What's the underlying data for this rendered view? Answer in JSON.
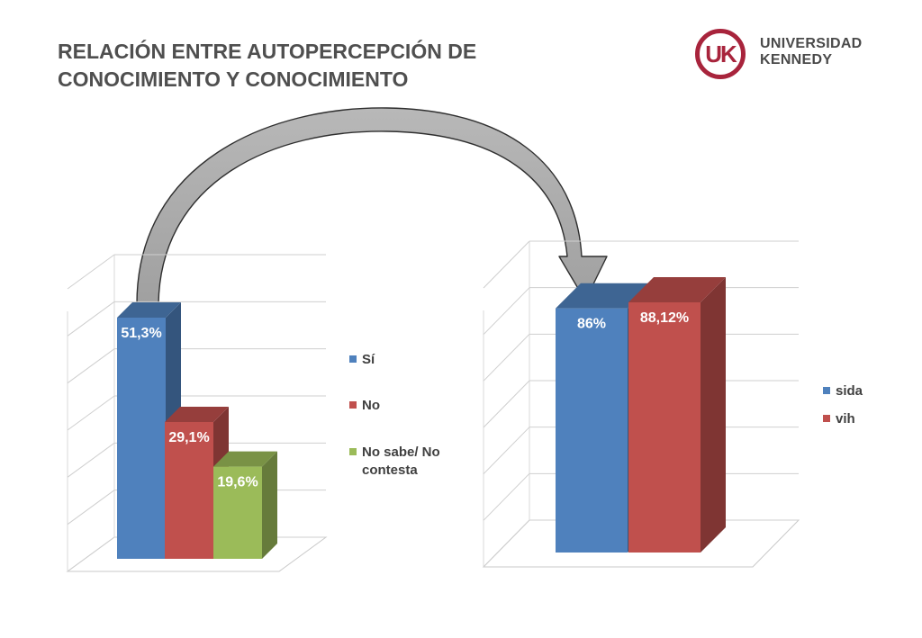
{
  "title_line1": "RELACIÓN ENTRE AUTOPERCEPCIÓN DE",
  "title_line2": "CONOCIMIENTO Y CONOCIMIENTO",
  "logo": {
    "mark": "UK",
    "line1": "UNIVERSIDAD",
    "line2": "KENNEDY"
  },
  "chart_data": [
    {
      "type": "bar",
      "categories": [
        "Sí",
        "No",
        "No sabe/ No contesta"
      ],
      "values": [
        51.3,
        29.1,
        19.6
      ],
      "data_labels": [
        "51,3%",
        "29,1%",
        "19,6%"
      ],
      "colors": [
        "#4f81bd",
        "#c0504d",
        "#9bbb59"
      ],
      "legend_position": "right",
      "grid": true
    },
    {
      "type": "bar",
      "categories": [
        "sida",
        "vih"
      ],
      "values": [
        86,
        88.12
      ],
      "data_labels": [
        "86%",
        "88,12%"
      ],
      "colors": [
        "#4f81bd",
        "#c0504d"
      ],
      "legend_position": "right",
      "grid": true
    }
  ]
}
